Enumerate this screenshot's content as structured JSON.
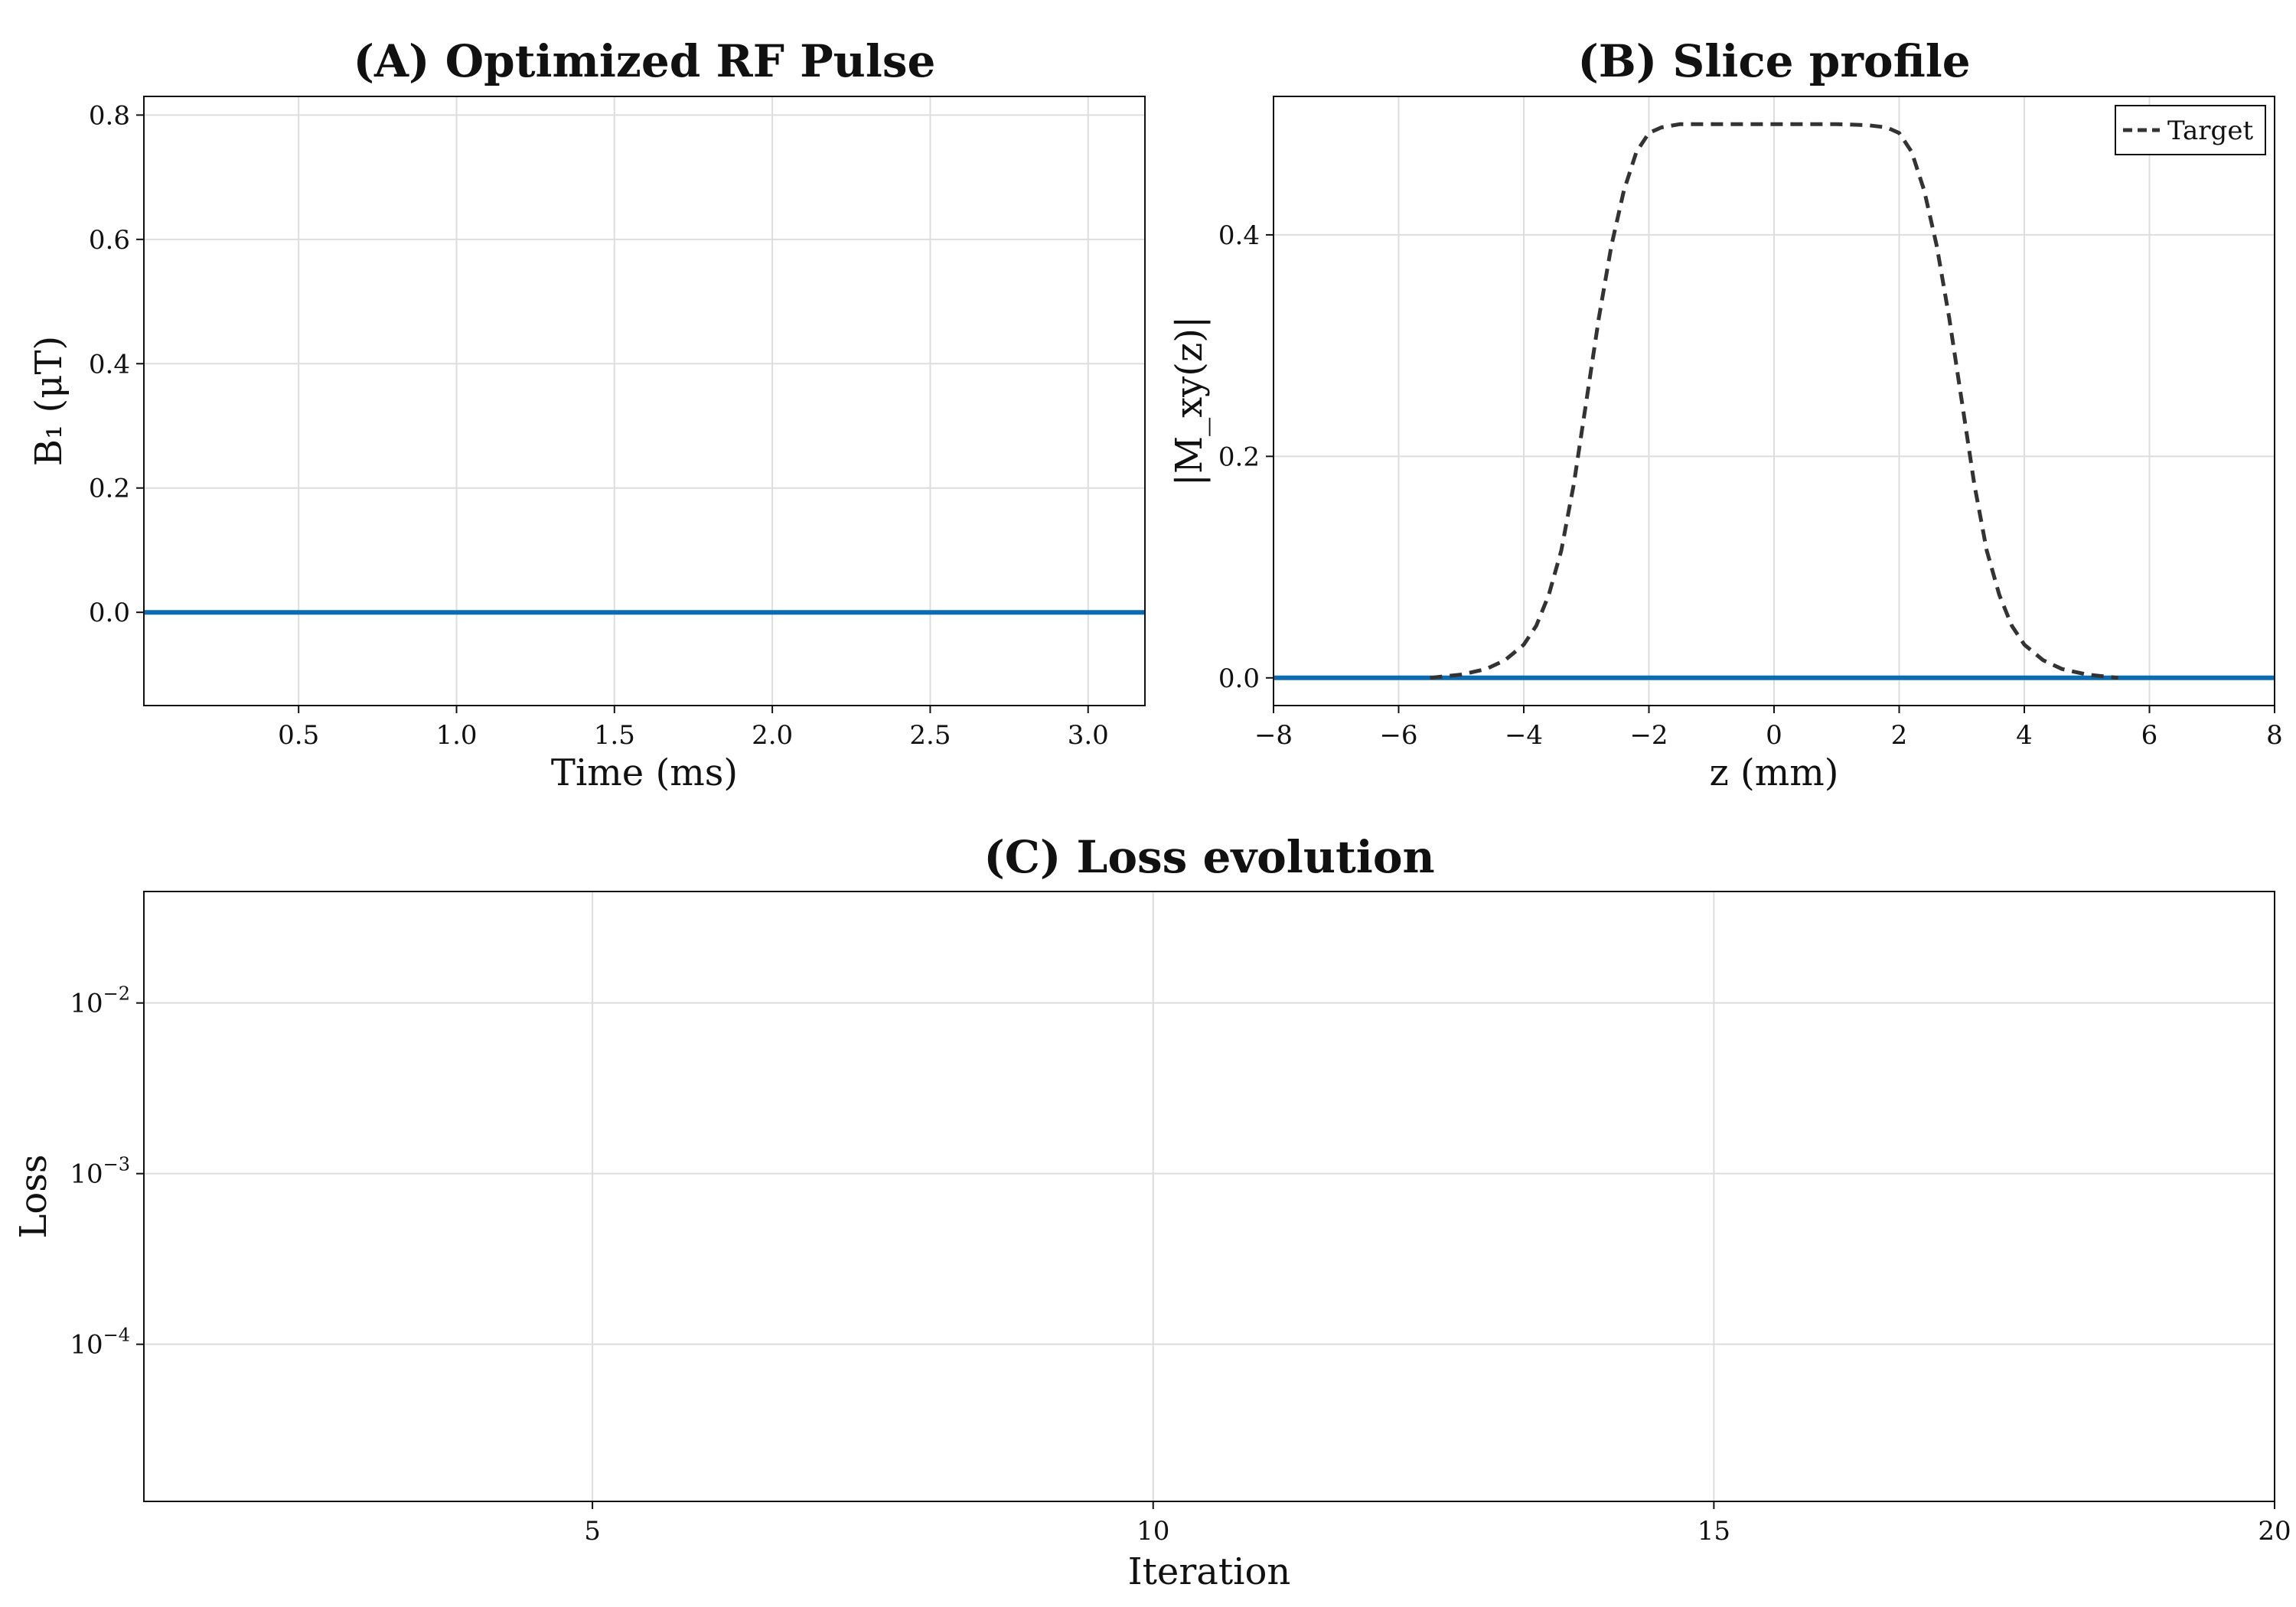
{
  "chart_data": [
    {
      "id": "A",
      "type": "line",
      "title": "(A) Optimized RF Pulse",
      "xlabel": "Time (ms)",
      "ylabel": "B₁ (μT)",
      "xlim": [
        0.01,
        3.18
      ],
      "ylim": [
        -0.15,
        0.83
      ],
      "xticks": [
        0.5,
        1.0,
        1.5,
        2.0,
        2.5,
        3.0
      ],
      "xtick_labels": [
        "0.5",
        "1.0",
        "1.5",
        "2.0",
        "2.5",
        "3.0"
      ],
      "yticks": [
        0.0,
        0.2,
        0.4,
        0.6,
        0.8
      ],
      "ytick_labels": [
        "0.0",
        "0.2",
        "0.4",
        "0.6",
        "0.8"
      ],
      "grid": true,
      "series": [
        {
          "color": "#0a6db3",
          "style": "solid",
          "x": [
            0.01,
            3.18
          ],
          "y": [
            0.0,
            0.0
          ]
        }
      ]
    },
    {
      "id": "B",
      "type": "line",
      "title": "(B) Slice profile",
      "xlabel": "z (mm)",
      "ylabel": "|M_xy(z)|",
      "xlim": [
        -8,
        8
      ],
      "ylim": [
        -0.025,
        0.525
      ],
      "xticks": [
        -8,
        -6,
        -4,
        -2,
        0,
        2,
        4,
        6,
        8
      ],
      "xtick_labels": [
        "−8",
        "−6",
        "−4",
        "−2",
        "0",
        "2",
        "4",
        "6",
        "8"
      ],
      "yticks": [
        0.0,
        0.2,
        0.4
      ],
      "ytick_labels": [
        "0.0",
        "0.2",
        "0.4"
      ],
      "grid": true,
      "legend": "top-right",
      "series": [
        {
          "color": "#0a6db3",
          "style": "solid",
          "x": [
            -8,
            8
          ],
          "y": [
            0.0,
            0.0
          ]
        },
        {
          "name": "Target",
          "color": "#333333",
          "style": "dashed",
          "x": [
            -5.5,
            -5.0,
            -4.6,
            -4.3,
            -4.0,
            -3.8,
            -3.6,
            -3.4,
            -3.2,
            -3.0,
            -2.8,
            -2.6,
            -2.4,
            -2.2,
            -2.0,
            -1.8,
            -1.5,
            -1.0,
            0.0,
            1.0,
            1.5,
            1.8,
            2.0,
            2.2,
            2.4,
            2.6,
            2.8,
            3.0,
            3.2,
            3.4,
            3.6,
            3.8,
            4.0,
            4.3,
            4.6,
            5.0,
            5.5
          ],
          "y": [
            0.0,
            0.003,
            0.008,
            0.016,
            0.03,
            0.047,
            0.075,
            0.115,
            0.175,
            0.25,
            0.325,
            0.39,
            0.44,
            0.475,
            0.492,
            0.497,
            0.5,
            0.5,
            0.5,
            0.5,
            0.499,
            0.497,
            0.492,
            0.475,
            0.44,
            0.39,
            0.325,
            0.25,
            0.175,
            0.115,
            0.075,
            0.047,
            0.03,
            0.016,
            0.008,
            0.003,
            0.0
          ]
        }
      ]
    },
    {
      "id": "C",
      "type": "line",
      "title": "(C) Loss evolution",
      "xlabel": "Iteration",
      "ylabel": "Loss",
      "xlim": [
        1,
        20
      ],
      "ylim": [
        1.2e-05,
        0.045
      ],
      "yscale": "log",
      "xticks": [
        5,
        10,
        15,
        20
      ],
      "xtick_labels": [
        "5",
        "10",
        "15",
        "20"
      ],
      "yticks": [
        0.0001,
        0.001,
        0.01
      ],
      "ytick_base": "10",
      "ytick_exponents": [
        "−4",
        "−3",
        "−2"
      ],
      "grid": true,
      "series": []
    }
  ]
}
